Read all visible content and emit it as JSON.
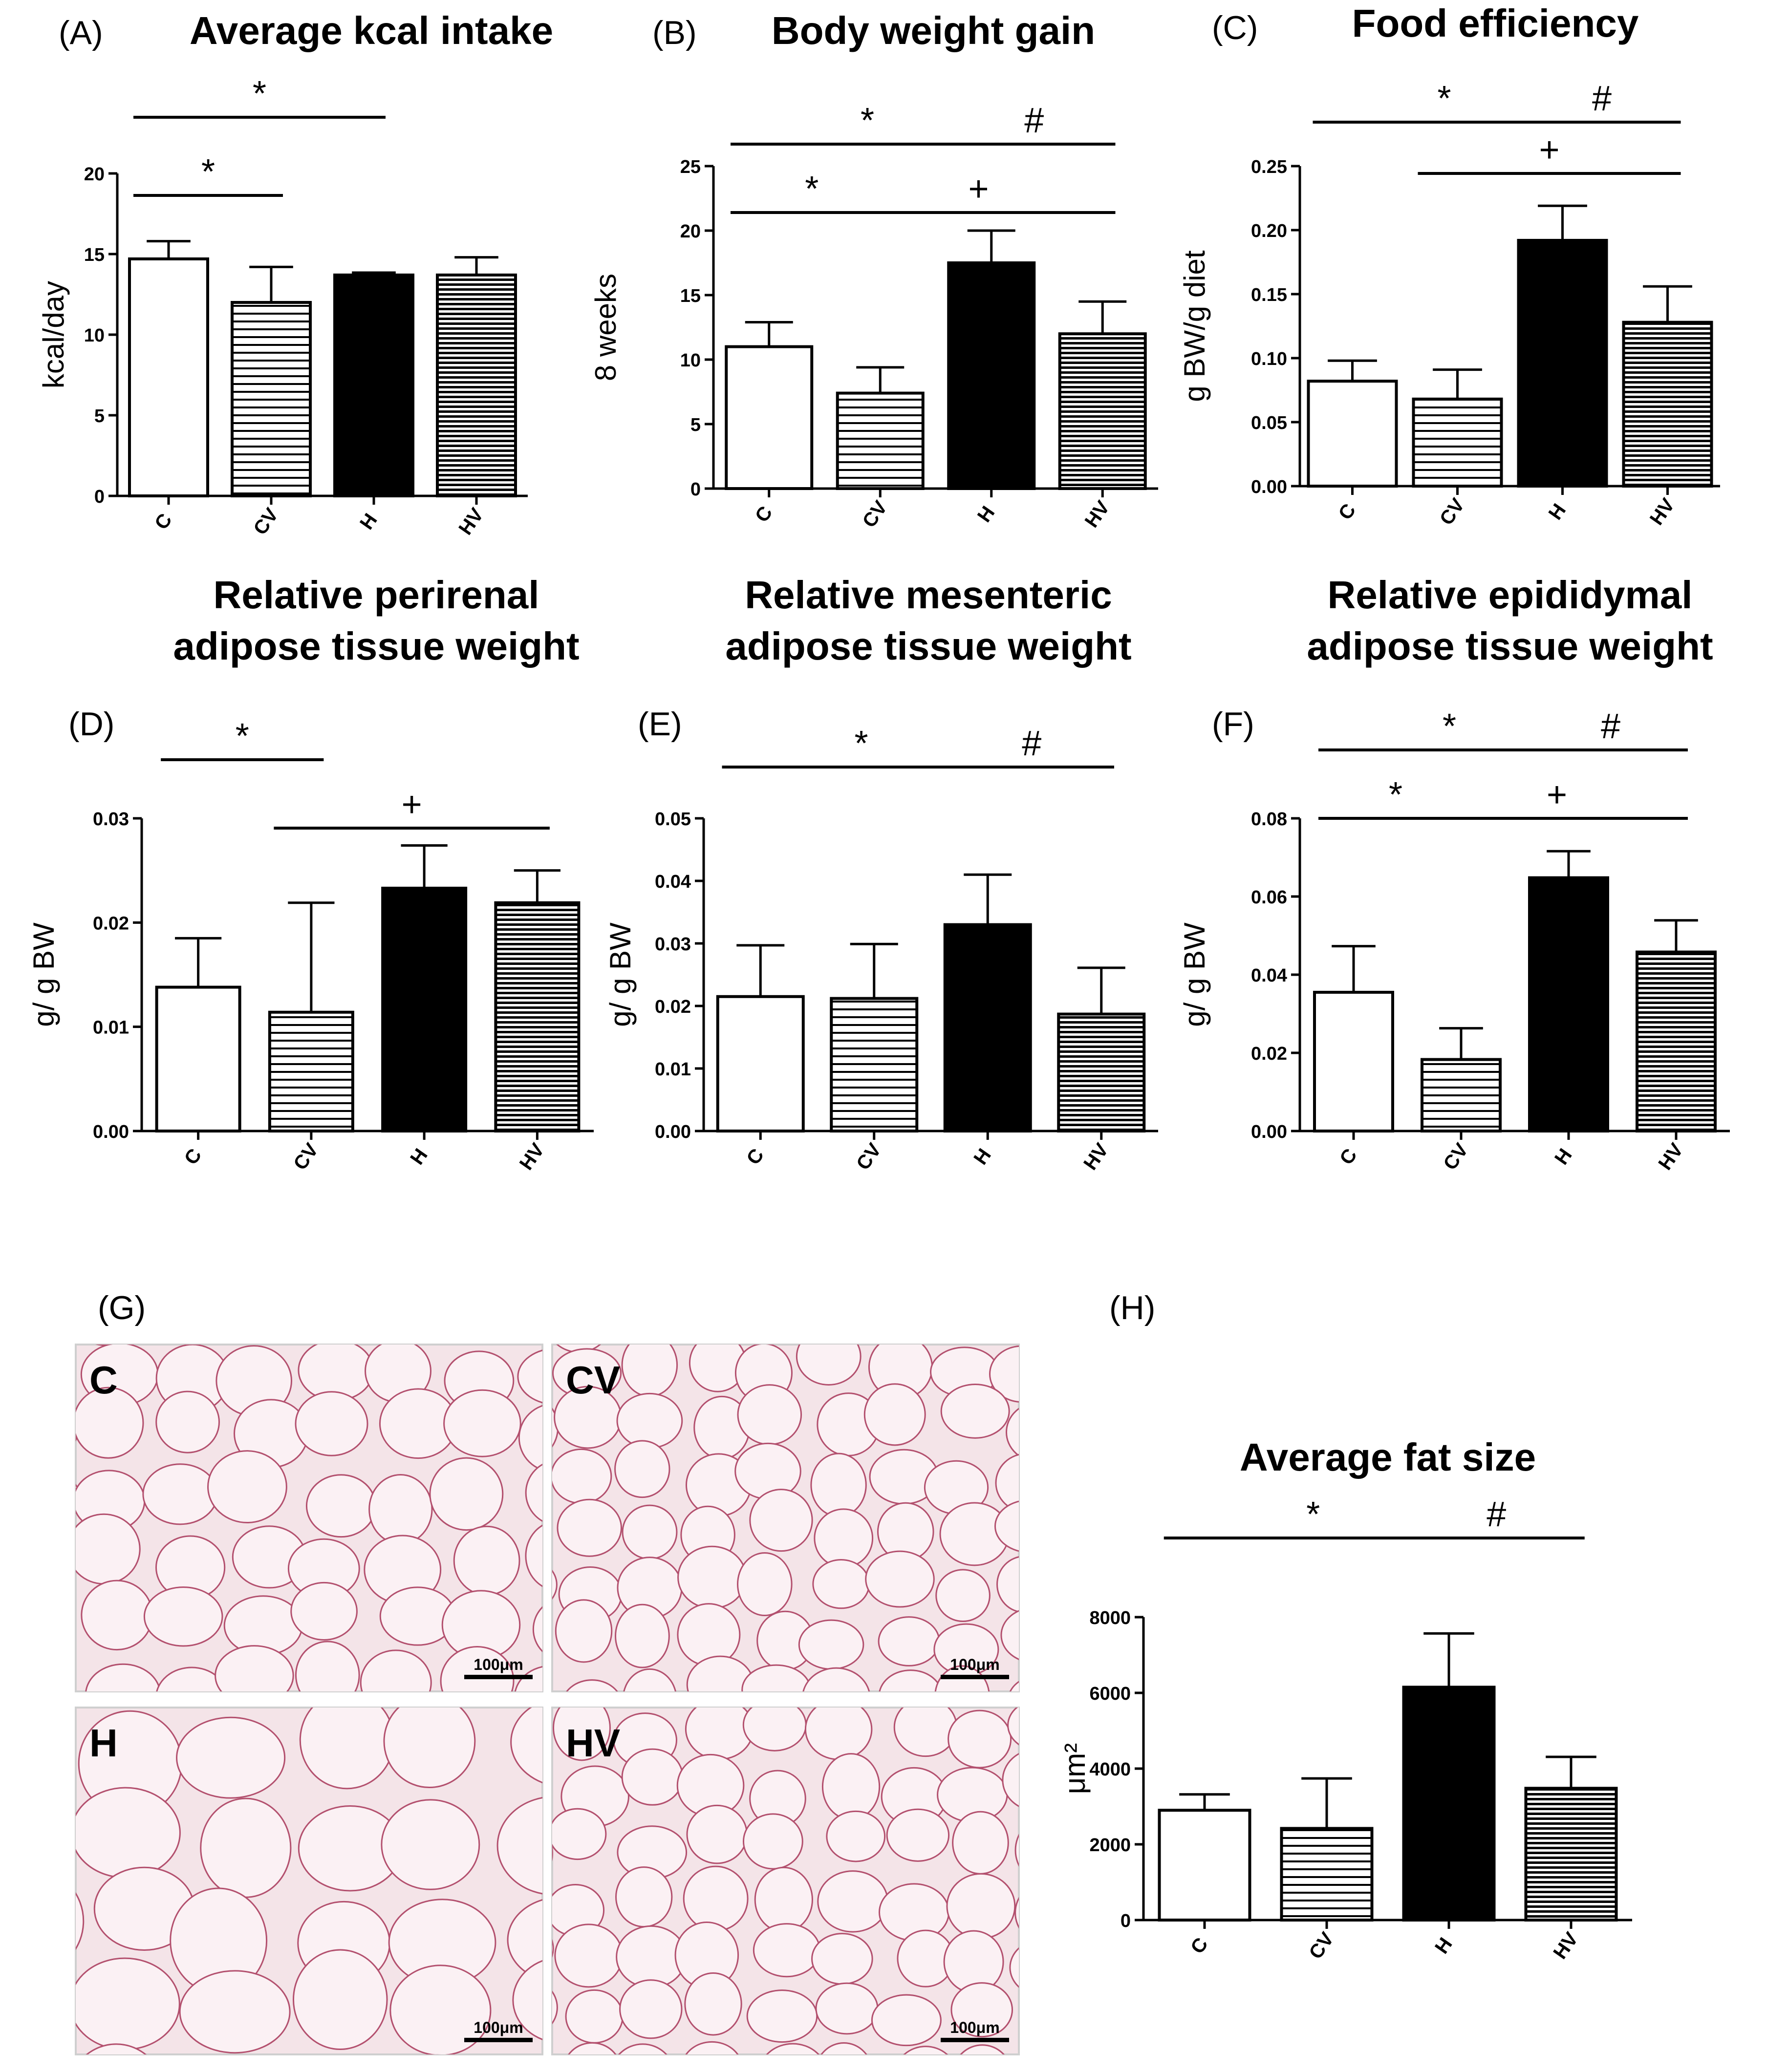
{
  "colors": {
    "axis": "#000000",
    "bar_white": "#ffffff",
    "bar_black": "#000000",
    "tissue_bg": "#f4e4e8",
    "tissue_line": "#b3506e"
  },
  "chart_data": [
    {
      "id": "A",
      "type": "bar",
      "panel_label": "(A)",
      "title": [
        "Average kcal intake"
      ],
      "ylabel": "kcal/day",
      "ylim": [
        0,
        20
      ],
      "yticks": [
        "0",
        "5",
        "10",
        "15",
        "20"
      ],
      "categories": [
        "C",
        "CV",
        "H",
        "HV"
      ],
      "fills": [
        "white",
        "hstripe",
        "black",
        "hstripe-dense"
      ],
      "values": [
        14.7,
        12.0,
        13.7,
        13.7
      ],
      "errors": [
        1.1,
        2.2,
        0.15,
        1.1
      ],
      "significance": [
        {
          "from": 0,
          "to": 1,
          "symbol": "*",
          "row": 0
        },
        {
          "from": 0,
          "to": 2,
          "symbol": "*",
          "row": 1
        }
      ]
    },
    {
      "id": "B",
      "type": "bar",
      "panel_label": "(B)",
      "title": [
        "Body weight gain"
      ],
      "ylabel": "8 weeks",
      "ylim": [
        0,
        25
      ],
      "yticks": [
        "0",
        "5",
        "10",
        "15",
        "20",
        "25"
      ],
      "categories": [
        "C",
        "CV",
        "H",
        "HV"
      ],
      "fills": [
        "white",
        "hstripe",
        "black",
        "hstripe-dense"
      ],
      "values": [
        11.0,
        7.4,
        17.5,
        12.0
      ],
      "errors": [
        1.9,
        2.0,
        2.5,
        2.5
      ],
      "significance": [
        {
          "from": 0,
          "to": 1,
          "symbol": "*",
          "row": 0
        },
        {
          "from": 1,
          "to": 3,
          "symbol": "+",
          "row": 0
        },
        {
          "from": 0,
          "to": 2,
          "symbol": "*",
          "row": 1
        },
        {
          "from": 2,
          "to": 3,
          "symbol": "#",
          "row": 1
        }
      ]
    },
    {
      "id": "C",
      "type": "bar",
      "panel_label": "(C)",
      "title": [
        "Food efficiency"
      ],
      "ylabel": "g BW/g diet",
      "ylim": [
        0,
        0.25
      ],
      "yticks": [
        "0.00",
        "0.05",
        "0.10",
        "0.15",
        "0.20",
        "0.25"
      ],
      "categories": [
        "C",
        "CV",
        "H",
        "HV"
      ],
      "fills": [
        "white",
        "hstripe",
        "black",
        "hstripe-dense"
      ],
      "values": [
        0.082,
        0.068,
        0.192,
        0.128
      ],
      "errors": [
        0.016,
        0.023,
        0.027,
        0.028
      ],
      "significance": [
        {
          "from": 1,
          "to": 3,
          "symbol": "+",
          "row": 0
        },
        {
          "from": 0,
          "to": 2,
          "symbol": "*",
          "row": 1
        },
        {
          "from": 2,
          "to": 3,
          "symbol": "#",
          "row": 1
        }
      ]
    },
    {
      "id": "D",
      "type": "bar",
      "panel_label": "(D)",
      "title": [
        "Relative perirenal",
        "adipose tissue weight"
      ],
      "ylabel": "g/ g BW",
      "ylim": [
        0,
        0.03
      ],
      "yticks": [
        "0.00",
        "0.01",
        "0.02",
        "0.03"
      ],
      "categories": [
        "C",
        "CV",
        "H",
        "HV"
      ],
      "fills": [
        "white",
        "hstripe",
        "black",
        "hstripe-dense"
      ],
      "values": [
        0.0138,
        0.0114,
        0.0233,
        0.0219
      ],
      "errors": [
        0.0047,
        0.0105,
        0.0041,
        0.0031
      ],
      "significance": [
        {
          "from": 1,
          "to": 3,
          "symbol": "+",
          "row": 0
        },
        {
          "from": 0,
          "to": 1,
          "symbol": "*",
          "row": 1
        }
      ]
    },
    {
      "id": "E",
      "type": "bar",
      "panel_label": "(E)",
      "title": [
        "Relative mesenteric",
        "adipose tissue weight"
      ],
      "ylabel": "g/ g BW",
      "ylim": [
        0,
        0.05
      ],
      "yticks": [
        "0.00",
        "0.01",
        "0.02",
        "0.03",
        "0.04",
        "0.05"
      ],
      "categories": [
        "C",
        "CV",
        "H",
        "HV"
      ],
      "fills": [
        "white",
        "hstripe",
        "black",
        "hstripe-dense"
      ],
      "values": [
        0.0215,
        0.0212,
        0.033,
        0.0187
      ],
      "errors": [
        0.0082,
        0.0087,
        0.008,
        0.0074
      ],
      "significance": [
        {
          "from": 0,
          "to": 2,
          "symbol": "*",
          "row": 0
        },
        {
          "from": 2,
          "to": 3,
          "symbol": "#",
          "row": 0
        }
      ]
    },
    {
      "id": "F",
      "type": "bar",
      "panel_label": "(F)",
      "title": [
        "Relative epididymal",
        "adipose tissue weight"
      ],
      "ylabel": "g/ g BW",
      "ylim": [
        0,
        0.08
      ],
      "yticks": [
        "0.00",
        "0.02",
        "0.04",
        "0.06",
        "0.08"
      ],
      "categories": [
        "C",
        "CV",
        "H",
        "HV"
      ],
      "fills": [
        "white",
        "hstripe",
        "black",
        "hstripe-dense"
      ],
      "values": [
        0.0355,
        0.0183,
        0.0648,
        0.0458
      ],
      "errors": [
        0.0118,
        0.008,
        0.0068,
        0.0081
      ],
      "significance": [
        {
          "from": 0,
          "to": 1,
          "symbol": "*",
          "row": 0
        },
        {
          "from": 1,
          "to": 3,
          "symbol": "+",
          "row": 0
        },
        {
          "from": 0,
          "to": 2,
          "symbol": "*",
          "row": 1
        },
        {
          "from": 2,
          "to": 3,
          "symbol": "#",
          "row": 1
        }
      ]
    },
    {
      "id": "H",
      "type": "bar",
      "panel_label": "(H)",
      "title": [
        "Average fat size"
      ],
      "ylabel": "μm²",
      "ylim": [
        0,
        8000
      ],
      "yticks": [
        "0",
        "2000",
        "4000",
        "6000",
        "8000"
      ],
      "categories": [
        "C",
        "CV",
        "H",
        "HV"
      ],
      "fills": [
        "white",
        "hstripe",
        "black",
        "hstripe-dense"
      ],
      "values": [
        2900,
        2420,
        6150,
        3480
      ],
      "errors": [
        420,
        1320,
        1420,
        830
      ],
      "significance": [
        {
          "from": 0,
          "to": 2,
          "symbol": "*",
          "row": 0
        },
        {
          "from": 2,
          "to": 3,
          "symbol": "#",
          "row": 0
        }
      ]
    }
  ],
  "micrographs": {
    "panel_label": "(G)",
    "scale_bar": "100μm",
    "images": [
      {
        "label": "C"
      },
      {
        "label": "CV"
      },
      {
        "label": "H"
      },
      {
        "label": "HV"
      }
    ]
  }
}
